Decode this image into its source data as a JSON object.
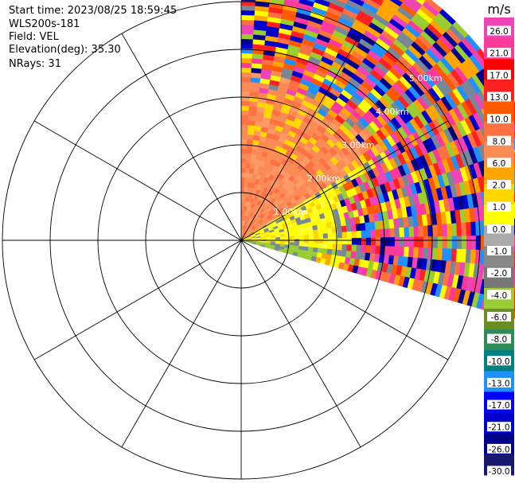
{
  "header": {
    "start_time": "Start time: 2023/08/25 18:59:45",
    "instrument": "WLS200s-181",
    "field": "Field: VEL",
    "elevation": "Elevation(deg): 35.30",
    "nrays": "NRays: 31"
  },
  "colorbar": {
    "unit": "m/s",
    "ticks": [
      "26.0",
      "21.0",
      "17.0",
      "13.0",
      "10.0",
      "8.0",
      "6.0",
      "2.0",
      "1.0",
      "0.0",
      "-1.0",
      "-2.0",
      "-4.0",
      "-6.0",
      "-8.0",
      "-10.0",
      "-13.0",
      "-17.0",
      "-21.0",
      "-26.0",
      "-30.0"
    ],
    "colors": [
      "#ee44b8",
      "#fc3a9a",
      "#ff0000",
      "#ff2020",
      "#ff5a00",
      "#ff7043",
      "#fb8b54",
      "#ffa500",
      "#ffd700",
      "#ffff00",
      "#aaaaaa",
      "#888888",
      "#777777",
      "#9acd32",
      "#6b8e23",
      "#2e8b57",
      "#008080",
      "#1e90ff",
      "#0000ff",
      "#0000cd",
      "#00008b",
      "#191970"
    ]
  },
  "chart_data": {
    "type": "heatmap",
    "title": "",
    "projection": "polar PPI",
    "azimuth_sector_deg": [
      0,
      106
    ],
    "range_rings_km": [
      "1.00km",
      "2.00km",
      "3.00km",
      "4.00km",
      "5.00km"
    ],
    "max_range_km": 6.4,
    "field": "VEL",
    "units": "m/s",
    "value_range": [
      -30,
      28
    ],
    "dominant_values": {
      "near_range_0_2km_az_0_60": 8.0,
      "near_range_az_60_106": 2.0,
      "far_range": "mixed"
    }
  }
}
